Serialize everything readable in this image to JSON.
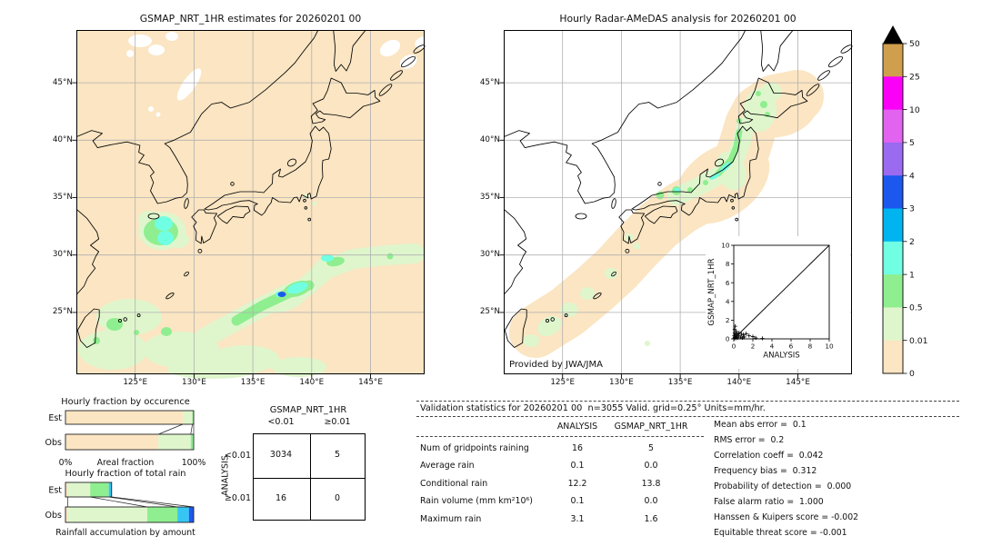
{
  "left_map": {
    "title": "GSMAP_NRT_1HR estimates for 20260201 00"
  },
  "right_map": {
    "title": "Hourly Radar-AMeDAS analysis for 20260201 00",
    "credit": "Provided by JWA/JMA"
  },
  "axes": {
    "lat_ticks": [
      "45°N",
      "40°N",
      "35°N",
      "30°N",
      "25°N"
    ],
    "lon_ticks": [
      "125°E",
      "130°E",
      "135°E",
      "140°E",
      "145°E"
    ]
  },
  "colorbar": {
    "units": "mm/hr",
    "labels": [
      "50",
      "25",
      "10",
      "5",
      "4",
      "3",
      "2",
      "1",
      "0.5",
      "0.01",
      "0"
    ],
    "colors_top_to_bottom": [
      "#cf9f4d",
      "#fb00f7",
      "#e163f0",
      "#9a6af0",
      "#1c58ee",
      "#00b4f0",
      "#70ffe2",
      "#8fee8f",
      "#dff6cd",
      "#fbe5c2"
    ],
    "overflow_color": "#000000"
  },
  "contingency": {
    "col_header": "GSMAP_NRT_1HR",
    "row_header": "ANALYSIS",
    "col_labels": [
      "<0.01",
      "≥0.01"
    ],
    "row_labels": [
      "<0.01",
      "≥0.01"
    ],
    "values": [
      [
        "3034",
        "5"
      ],
      [
        "16",
        "0"
      ]
    ]
  },
  "validation": {
    "header": "Validation statistics for 20260201 00  n=3055 Valid. grid=0.25° Units=mm/hr.",
    "table": {
      "col_headers": [
        "ANALYSIS",
        "GSMAP_NRT_1HR"
      ],
      "rows": [
        {
          "label": "Num of gridpoints raining",
          "analysis": "16",
          "gsmap": "5"
        },
        {
          "label": "Average rain",
          "analysis": "0.1",
          "gsmap": "0.0"
        },
        {
          "label": "Conditional rain",
          "analysis": "12.2",
          "gsmap": "13.8"
        },
        {
          "label": "Rain volume (mm km²10⁶)",
          "analysis": "0.1",
          "gsmap": "0.0"
        },
        {
          "label": "Maximum rain",
          "analysis": "3.1",
          "gsmap": "1.6"
        }
      ]
    },
    "scores": [
      {
        "label": "Mean abs error",
        "value": "0.1"
      },
      {
        "label": "RMS error",
        "value": "0.2"
      },
      {
        "label": "Correlation coeff",
        "value": "0.042"
      },
      {
        "label": "Frequency bias",
        "value": "0.312"
      },
      {
        "label": "Probability of detection",
        "value": "0.000"
      },
      {
        "label": "False alarm ratio",
        "value": "1.000"
      },
      {
        "label": "Hanssen & Kuipers score",
        "value": "-0.002"
      },
      {
        "label": "Equitable threat score",
        "value": "-0.001"
      }
    ]
  },
  "chart_data": [
    {
      "id": "gsmap_map",
      "type": "heatmap",
      "title": "GSMAP_NRT_1HR estimates for 20260201 00",
      "region": {
        "lon": [
          120,
          149.6
        ],
        "lat": [
          19.6,
          49.6
        ]
      },
      "units": "mm/hr",
      "legend_boundaries": [
        0,
        0.01,
        0.5,
        1,
        2,
        3,
        4,
        5,
        10,
        25,
        50
      ],
      "features": [
        "diagonal rain band from 24N,128E to 30N,141E with 1-3 mm/hr core near 27.5N,134-136E and a 3-4 mm/hr spot",
        "rain cluster 30.5-33.5N,126-128.5E with 1-2 mm/hr core",
        "scattered 0.01-1 mm/hr rain south of 26N between 120E and 133E",
        "white no-rain-data patches near 47-49.5N,124-128E and 43-45N,125-127E"
      ]
    },
    {
      "id": "radar_map",
      "type": "heatmap",
      "title": "Hourly Radar-AMeDAS analysis for 20260201 00",
      "region": {
        "lon": [
          120,
          149.6
        ],
        "lat": [
          19.6,
          49.6
        ]
      },
      "units": "mm/hr",
      "features": [
        "radar coverage band (0-0.01 mm/hr) along the Japanese archipelago from Okinawa to Hokkaido, white outside coverage",
        "0.01-0.5 mm/hr along the Japan Sea coast of Honshu, western Hokkaido and around Okinawa",
        "0.5-2 mm/hr spots near 35.5N,134E, 36N,136.5E and a streak 37.5-40N,138-140E"
      ]
    },
    {
      "id": "occurrence_bars",
      "type": "bar",
      "stacked": true,
      "orientation": "horizontal",
      "title": "Hourly fraction by occurence",
      "categories": [
        "Est",
        "Obs"
      ],
      "xlabel": "Areal fraction",
      "xlim_labels": [
        "0%",
        "100%"
      ],
      "rows": [
        {
          "label": "Est",
          "segments": [
            {
              "class": "0-0.01",
              "color": "#fbe5c2",
              "fraction": 0.915
            },
            {
              "class": "0.01-0.5",
              "color": "#dff6cd",
              "fraction": 0.075
            },
            {
              "class": "0.5-1",
              "color": "#8fee8f",
              "fraction": 0.01
            }
          ]
        },
        {
          "label": "Obs",
          "segments": [
            {
              "class": "0-0.01",
              "color": "#fbe5c2",
              "fraction": 0.725
            },
            {
              "class": "0.01-0.5",
              "color": "#dff6cd",
              "fraction": 0.252
            },
            {
              "class": "0.5-1",
              "color": "#8fee8f",
              "fraction": 0.018
            },
            {
              "class": "1-2",
              "color": "#70ffe2",
              "fraction": 0.005
            }
          ]
        }
      ],
      "connectors": [
        [
          0.915,
          0.725
        ],
        [
          0.99,
          0.977
        ],
        [
          1.0,
          1.0
        ]
      ]
    },
    {
      "id": "total_rain_bars",
      "type": "bar",
      "stacked": true,
      "orientation": "horizontal",
      "title": "Hourly fraction of total rain",
      "categories": [
        "Est",
        "Obs"
      ],
      "xlabel": "Rainfall accumulation by amount",
      "rows": [
        {
          "label": "Est",
          "segments": [
            {
              "class": "0-0.01",
              "color": "#fbe5c2",
              "fraction": 0.018
            },
            {
              "class": "0.01-0.5",
              "color": "#dff6cd",
              "fraction": 0.175
            },
            {
              "class": "0.5-1",
              "color": "#8fee8f",
              "fraction": 0.145
            },
            {
              "class": "2-3",
              "color": "#36c6f4",
              "fraction": 0.022
            }
          ]
        },
        {
          "label": "Obs",
          "segments": [
            {
              "class": "0-0.01",
              "color": "#fbe5c2",
              "fraction": 0.018
            },
            {
              "class": "0.01-0.5",
              "color": "#dff6cd",
              "fraction": 0.62
            },
            {
              "class": "0.5-1",
              "color": "#8fee8f",
              "fraction": 0.235
            },
            {
              "class": "2-3",
              "color": "#36c6f4",
              "fraction": 0.09
            },
            {
              "class": "3-4",
              "color": "#1c58ee",
              "fraction": 0.037
            }
          ]
        }
      ],
      "connectors": [
        [
          0.018,
          0.018
        ],
        [
          0.193,
          0.638
        ],
        [
          0.338,
          0.873
        ],
        [
          0.36,
          1.0
        ]
      ]
    },
    {
      "id": "scatter_inset",
      "type": "scatter",
      "xlabel": "ANALYSIS",
      "ylabel": "GSMAP_NRT_1HR",
      "xlim": [
        0,
        10
      ],
      "ylim": [
        0,
        10
      ],
      "ticks": [
        "0",
        "2",
        "4",
        "6",
        "8",
        "10"
      ],
      "diagonal": true,
      "points": [
        [
          0.05,
          0.05
        ],
        [
          0.05,
          0.35
        ],
        [
          0.1,
          0.15
        ],
        [
          0.1,
          0.6
        ],
        [
          0.1,
          1.0
        ],
        [
          0.15,
          0.25
        ],
        [
          0.15,
          1.35
        ],
        [
          0.2,
          0.05
        ],
        [
          0.2,
          0.45
        ],
        [
          0.25,
          0.8
        ],
        [
          0.3,
          0.2
        ],
        [
          0.35,
          0.55
        ],
        [
          0.4,
          0.1
        ],
        [
          0.5,
          0.35
        ],
        [
          0.55,
          0.65
        ],
        [
          0.7,
          0.2
        ],
        [
          0.8,
          0.5
        ],
        [
          0.9,
          0.1
        ],
        [
          1.0,
          0.45
        ],
        [
          1.1,
          0.2
        ],
        [
          1.3,
          0.55
        ],
        [
          1.6,
          0.35
        ],
        [
          2.0,
          0.25
        ],
        [
          2.3,
          0.1
        ],
        [
          3.0,
          0.05
        ]
      ]
    },
    {
      "id": "contingency_table",
      "type": "table",
      "col_header": "GSMAP_NRT_1HR",
      "row_header": "ANALYSIS",
      "col_labels": [
        "<0.01",
        "≥0.01"
      ],
      "row_labels": [
        "<0.01",
        "≥0.01"
      ],
      "values": [
        [
          3034,
          5
        ],
        [
          16,
          0
        ]
      ]
    },
    {
      "id": "validation_table",
      "type": "table",
      "col_headers": [
        "ANALYSIS",
        "GSMAP_NRT_1HR"
      ],
      "rows": [
        [
          "Num of gridpoints raining",
          16,
          5
        ],
        [
          "Average rain",
          0.1,
          0.0
        ],
        [
          "Conditional rain",
          12.2,
          13.8
        ],
        [
          "Rain volume (mm km²10⁶)",
          0.1,
          0.0
        ],
        [
          "Maximum rain",
          3.1,
          1.6
        ]
      ]
    },
    {
      "id": "skill_scores",
      "type": "table",
      "rows": [
        [
          "Mean abs error",
          0.1
        ],
        [
          "RMS error",
          0.2
        ],
        [
          "Correlation coeff",
          0.042
        ],
        [
          "Frequency bias",
          0.312
        ],
        [
          "Probability of detection",
          0.0
        ],
        [
          "False alarm ratio",
          1.0
        ],
        [
          "Hanssen & Kuipers score",
          -0.002
        ],
        [
          "Equitable threat score",
          -0.001
        ]
      ]
    }
  ]
}
